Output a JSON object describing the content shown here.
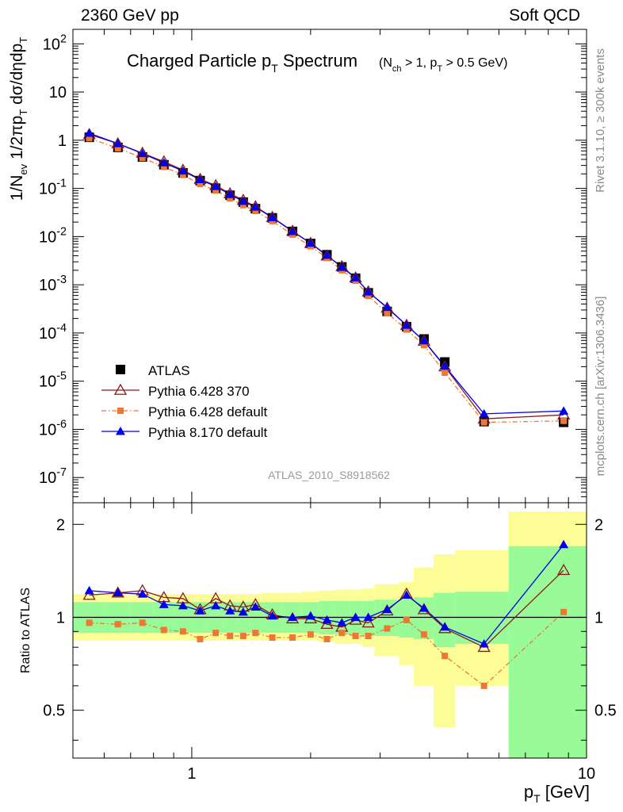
{
  "header": {
    "left": "2360 GeV pp",
    "right": "Soft QCD"
  },
  "side_labels": {
    "rivet": "Rivet 3.1.10, ≥ 300k events",
    "source": "mcplots.cern.ch [arXiv:1306.3436]"
  },
  "chart_data": [
    {
      "type": "scatter",
      "panel": "main",
      "title": "Charged Particle pT Spectrum",
      "title_main": "Charged Particle p",
      "title_sub": "T",
      "title_tail": " Spectrum",
      "title_cuts": "(Nch > 1, pT > 0.5 GeV)",
      "xscale": "log",
      "yscale": "log",
      "xlim": [
        0.5,
        10
      ],
      "ylim": [
        3e-08,
        200
      ],
      "ylabel": "1/Nev 1/2πpT dσ/dηdpT",
      "yticks": [
        {
          "v": 1e-07,
          "label": "10^-7"
        },
        {
          "v": 1e-06,
          "label": "10^-6"
        },
        {
          "v": 1e-05,
          "label": "10^-5"
        },
        {
          "v": 0.0001,
          "label": "10^-4"
        },
        {
          "v": 0.001,
          "label": "10^-3"
        },
        {
          "v": 0.01,
          "label": "10^-2"
        },
        {
          "v": 0.1,
          "label": "10^-1"
        },
        {
          "v": 1,
          "label": "1"
        },
        {
          "v": 10,
          "label": "10"
        },
        {
          "v": 100,
          "label": "10^2"
        }
      ],
      "watermark": "ATLAS_2010_S8918562",
      "legend_position": "bottom-left",
      "x": [
        0.55,
        0.65,
        0.75,
        0.85,
        0.95,
        1.05,
        1.15,
        1.25,
        1.35,
        1.45,
        1.6,
        1.8,
        2.0,
        2.2,
        2.4,
        2.6,
        2.8,
        3.125,
        3.5,
        3.875,
        4.375,
        5.5,
        8.75
      ],
      "series": [
        {
          "name": "ATLAS",
          "color": "#000000",
          "marker": "square",
          "values": [
            1.15,
            0.71,
            0.45,
            0.31,
            0.21,
            0.145,
            0.101,
            0.072,
            0.052,
            0.038,
            0.0245,
            0.0128,
            0.0072,
            0.0042,
            0.00235,
            0.00137,
            0.00068,
            0.00028,
            0.000135,
            7.5e-05,
            2.5e-05,
            1.45e-06,
            1.4e-06
          ]
        },
        {
          "name": "Pythia 6.428 370",
          "color": "#8b1a1a",
          "marker": "open-triangle",
          "line": "solid",
          "values": [
            1.32,
            0.85,
            0.54,
            0.36,
            0.24,
            0.155,
            0.115,
            0.078,
            0.057,
            0.042,
            0.0252,
            0.013,
            0.0073,
            0.004,
            0.0024,
            0.0014,
            0.00072,
            0.00033,
            0.000145,
            6.8e-05,
            2e-05,
            1.65e-06,
            2e-06
          ]
        },
        {
          "name": "Pythia 6.428 default",
          "color": "#ee7733",
          "marker": "filled-square-small",
          "line": "dashdot",
          "values": [
            1.1,
            0.68,
            0.43,
            0.28,
            0.19,
            0.123,
            0.09,
            0.062,
            0.045,
            0.034,
            0.021,
            0.011,
            0.0063,
            0.0036,
            0.002,
            0.00122,
            0.00059,
            0.00026,
            0.000118,
            5.6e-05,
            1.5e-05,
            1.4e-06,
            1.5e-06
          ]
        },
        {
          "name": "Pythia 8.170 default",
          "color": "#0000ee",
          "marker": "filled-triangle",
          "line": "solid",
          "values": [
            1.4,
            0.85,
            0.53,
            0.34,
            0.23,
            0.152,
            0.11,
            0.075,
            0.054,
            0.041,
            0.0248,
            0.0128,
            0.0073,
            0.0041,
            0.0023,
            0.0014,
            0.00071,
            0.00034,
            0.000145,
            6.9e-05,
            2.05e-05,
            2.1e-06,
            2.4e-06
          ]
        }
      ]
    },
    {
      "type": "scatter",
      "panel": "ratio",
      "ylabel": "Ratio to ATLAS",
      "xscale": "log",
      "yscale": "log",
      "xlim": [
        0.5,
        10
      ],
      "ylim": [
        0.35,
        2.35
      ],
      "reference": 1,
      "yticks": [
        {
          "v": 0.5,
          "label": "0.5"
        },
        {
          "v": 1,
          "label": "1"
        },
        {
          "v": 2,
          "label": "2"
        }
      ],
      "xticks": [
        {
          "v": 1,
          "label": "1"
        },
        {
          "v": 10,
          "label": "10"
        }
      ],
      "xlabel": "pT [GeV]",
      "bins": [
        {
          "lo": 0.5,
          "hi": 0.6,
          "g": [
            0.89,
            1.12
          ],
          "y": [
            0.84,
            1.19
          ]
        },
        {
          "lo": 0.6,
          "hi": 0.7,
          "g": [
            0.89,
            1.12
          ],
          "y": [
            0.84,
            1.19
          ]
        },
        {
          "lo": 0.7,
          "hi": 0.8,
          "g": [
            0.89,
            1.12
          ],
          "y": [
            0.84,
            1.19
          ]
        },
        {
          "lo": 0.8,
          "hi": 0.9,
          "g": [
            0.89,
            1.12
          ],
          "y": [
            0.84,
            1.19
          ]
        },
        {
          "lo": 0.9,
          "hi": 1.0,
          "g": [
            0.89,
            1.12
          ],
          "y": [
            0.84,
            1.19
          ]
        },
        {
          "lo": 1.0,
          "hi": 1.1,
          "g": [
            0.89,
            1.12
          ],
          "y": [
            0.84,
            1.19
          ]
        },
        {
          "lo": 1.1,
          "hi": 1.2,
          "g": [
            0.89,
            1.12
          ],
          "y": [
            0.84,
            1.19
          ]
        },
        {
          "lo": 1.2,
          "hi": 1.3,
          "g": [
            0.89,
            1.12
          ],
          "y": [
            0.84,
            1.19
          ]
        },
        {
          "lo": 1.3,
          "hi": 1.4,
          "g": [
            0.89,
            1.12
          ],
          "y": [
            0.84,
            1.19
          ]
        },
        {
          "lo": 1.4,
          "hi": 1.5,
          "g": [
            0.89,
            1.12
          ],
          "y": [
            0.84,
            1.19
          ]
        },
        {
          "lo": 1.5,
          "hi": 1.7,
          "g": [
            0.89,
            1.12
          ],
          "y": [
            0.84,
            1.2
          ]
        },
        {
          "lo": 1.7,
          "hi": 1.9,
          "g": [
            0.89,
            1.12
          ],
          "y": [
            0.84,
            1.2
          ]
        },
        {
          "lo": 1.9,
          "hi": 2.1,
          "g": [
            0.89,
            1.12
          ],
          "y": [
            0.84,
            1.21
          ]
        },
        {
          "lo": 2.1,
          "hi": 2.3,
          "g": [
            0.88,
            1.13
          ],
          "y": [
            0.83,
            1.22
          ]
        },
        {
          "lo": 2.3,
          "hi": 2.5,
          "g": [
            0.88,
            1.13
          ],
          "y": [
            0.82,
            1.23
          ]
        },
        {
          "lo": 2.5,
          "hi": 2.7,
          "g": [
            0.88,
            1.13
          ],
          "y": [
            0.82,
            1.23
          ]
        },
        {
          "lo": 2.7,
          "hi": 2.9,
          "g": [
            0.87,
            1.13
          ],
          "y": [
            0.8,
            1.24
          ]
        },
        {
          "lo": 2.9,
          "hi": 3.35,
          "g": [
            0.87,
            1.14
          ],
          "y": [
            0.75,
            1.28
          ]
        },
        {
          "lo": 3.35,
          "hi": 3.65,
          "g": [
            0.86,
            1.15
          ],
          "y": [
            0.7,
            1.3
          ]
        },
        {
          "lo": 3.65,
          "hi": 4.1,
          "g": [
            0.85,
            1.16
          ],
          "y": [
            0.6,
            1.45
          ]
        },
        {
          "lo": 4.1,
          "hi": 4.65,
          "g": [
            0.8,
            1.2
          ],
          "y": [
            0.44,
            1.6
          ]
        },
        {
          "lo": 4.65,
          "hi": 6.35,
          "g": [
            0.82,
            1.21
          ],
          "y": [
            0.6,
            1.65
          ]
        },
        {
          "lo": 6.35,
          "hi": 10,
          "g": [
            0.35,
            1.7
          ],
          "y": [
            0.35,
            2.2
          ]
        }
      ],
      "series": [
        {
          "name": "Pythia 6.428 370",
          "color": "#8b1a1a",
          "marker": "open-triangle",
          "line": "solid",
          "values": [
            1.18,
            1.2,
            1.22,
            1.16,
            1.15,
            1.06,
            1.15,
            1.09,
            1.08,
            1.1,
            1.02,
            0.99,
            0.99,
            0.95,
            0.93,
            0.98,
            0.96,
            1.05,
            1.19,
            1.06,
            0.92,
            0.8,
            1.42
          ]
        },
        {
          "name": "Pythia 6.428 default",
          "color": "#ee7733",
          "marker": "filled-square-small",
          "line": "dashdot",
          "values": [
            0.96,
            0.95,
            0.96,
            0.91,
            0.9,
            0.85,
            0.89,
            0.87,
            0.87,
            0.89,
            0.86,
            0.86,
            0.88,
            0.85,
            0.89,
            0.87,
            0.87,
            0.92,
            0.98,
            0.88,
            0.75,
            0.6,
            1.04
          ]
        },
        {
          "name": "Pythia 8.170 default",
          "color": "#0000ee",
          "marker": "filled-triangle",
          "line": "solid",
          "values": [
            1.22,
            1.2,
            1.19,
            1.1,
            1.09,
            1.05,
            1.09,
            1.05,
            1.04,
            1.08,
            1.01,
            1.0,
            1.01,
            0.98,
            0.96,
            1.0,
            1.0,
            1.06,
            1.18,
            1.07,
            0.93,
            0.82,
            1.72
          ]
        }
      ]
    }
  ]
}
